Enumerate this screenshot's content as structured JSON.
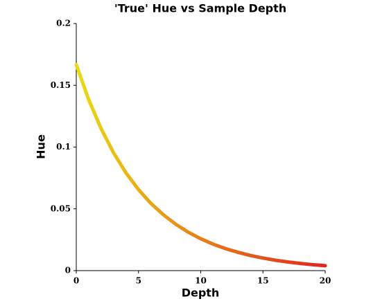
{
  "chart_data": {
    "type": "line",
    "title": "'True' Hue vs Sample Depth",
    "x_label": "Depth",
    "y_label": "Hue",
    "x": [
      0,
      1,
      2,
      3,
      4,
      5,
      6,
      7,
      8,
      9,
      10,
      11,
      12,
      13,
      14,
      15,
      16,
      17,
      18,
      19,
      20
    ],
    "series": [
      {
        "values": [
          0.1667,
          0.1383,
          0.1148,
          0.0953,
          0.079,
          0.0656,
          0.0544,
          0.0452,
          0.0375,
          0.0311,
          0.0258,
          0.0214,
          0.0178,
          0.0148,
          0.0122,
          0.0102,
          0.0084,
          0.007,
          0.0058,
          0.0048,
          0.004
        ],
        "color": [
          "#e8dc12",
          "#e3241f"
        ]
      }
    ],
    "xlim": [
      0,
      20
    ],
    "xticks": [
      0,
      5,
      10,
      15,
      20
    ],
    "ylim": [
      0,
      0.2
    ],
    "yticks": [
      0,
      0.05,
      0.1,
      0.15,
      0.2
    ]
  }
}
